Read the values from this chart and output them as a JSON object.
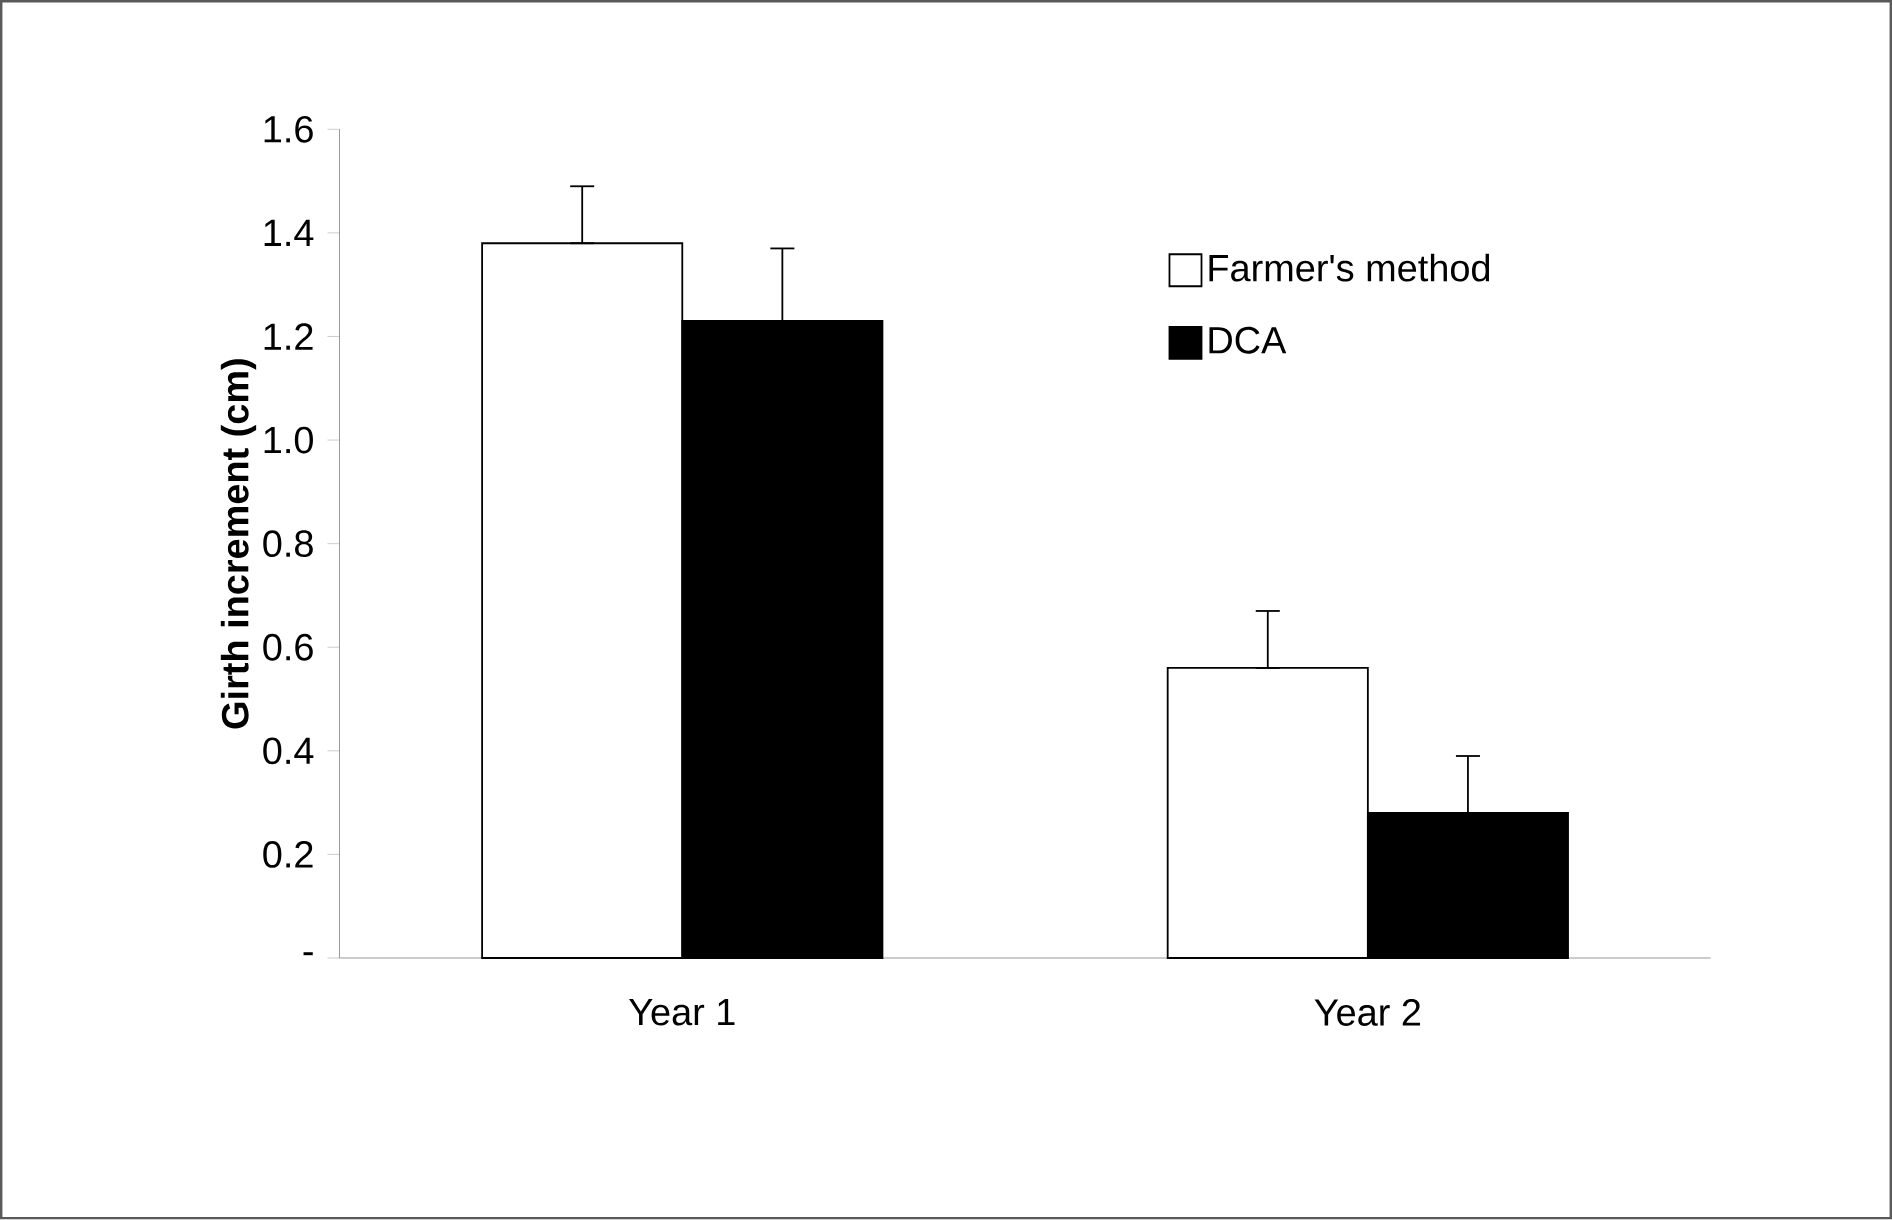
{
  "chart_data": {
    "type": "bar",
    "ylabel": "Girth increment (cm)",
    "categories": [
      "Year 1",
      "Year 2"
    ],
    "series": [
      {
        "name": "Farmer's method",
        "color": "#ffffff",
        "values": [
          1.38,
          0.56
        ],
        "errors": [
          [
            1.38,
            1.49
          ],
          [
            0.56,
            0.67
          ]
        ]
      },
      {
        "name": "DCA",
        "color": "#000000",
        "values": [
          1.23,
          0.28
        ],
        "errors": [
          [
            1.23,
            1.37
          ],
          [
            0.28,
            0.39
          ]
        ]
      }
    ],
    "ylim": [
      0,
      1.6
    ],
    "yticks": [
      {
        "value": 0,
        "label": "-"
      },
      {
        "value": 0.2,
        "label": "0.2"
      },
      {
        "value": 0.4,
        "label": "0.4"
      },
      {
        "value": 0.6,
        "label": "0.6"
      },
      {
        "value": 0.8,
        "label": "0.8"
      },
      {
        "value": 1.0,
        "label": "1.0"
      },
      {
        "value": 1.2,
        "label": "1.2"
      },
      {
        "value": 1.4,
        "label": "1.4"
      },
      {
        "value": 1.6,
        "label": "1.6"
      }
    ],
    "legend": "top right"
  }
}
